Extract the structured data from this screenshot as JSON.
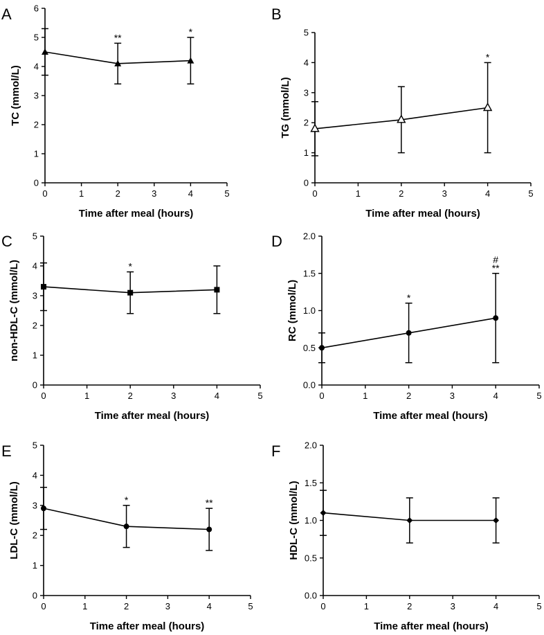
{
  "chart_data": [
    {
      "panel": "A",
      "type": "line",
      "x": [
        0,
        2,
        4
      ],
      "y": [
        4.5,
        4.1,
        4.2
      ],
      "err_low": [
        3.7,
        3.4,
        3.4
      ],
      "err_high": [
        5.3,
        4.8,
        5.0
      ],
      "marker": "triangle-filled",
      "annotations": [
        "",
        "**",
        "*"
      ],
      "xlabel": "Time after meal (hours)",
      "ylabel": "TC  (mmol/L)",
      "xlim": [
        0,
        5
      ],
      "ylim": [
        0,
        6
      ],
      "xticks": [
        "0",
        "1",
        "2",
        "3",
        "4",
        "5"
      ],
      "yticks": [
        "0",
        "1",
        "2",
        "3",
        "4",
        "5",
        "6"
      ]
    },
    {
      "panel": "B",
      "type": "line",
      "x": [
        0,
        2,
        4
      ],
      "y": [
        1.8,
        2.1,
        2.5
      ],
      "err_low": [
        0.9,
        1.0,
        1.0
      ],
      "err_high": [
        2.7,
        3.2,
        4.0
      ],
      "marker": "triangle-open",
      "annotations": [
        "",
        "",
        "*"
      ],
      "xlabel": "Time after meal (hours)",
      "ylabel": "TG  (mmol/L)",
      "xlim": [
        0,
        5
      ],
      "ylim": [
        0,
        5
      ],
      "xticks": [
        "0",
        "1",
        "2",
        "3",
        "4",
        "5"
      ],
      "yticks": [
        "0",
        "1",
        "2",
        "3",
        "4",
        "5"
      ]
    },
    {
      "panel": "C",
      "type": "line",
      "x": [
        0,
        2,
        4
      ],
      "y": [
        3.3,
        3.1,
        3.2
      ],
      "err_low": [
        2.5,
        2.4,
        2.4
      ],
      "err_high": [
        4.1,
        3.8,
        4.0
      ],
      "marker": "square",
      "annotations": [
        "",
        "*",
        ""
      ],
      "xlabel": "Time after meal (hours)",
      "ylabel": "non-HDL-C (mmol/L)",
      "xlim": [
        0,
        5
      ],
      "ylim": [
        0,
        5
      ],
      "xticks": [
        "0",
        "1",
        "2",
        "3",
        "4",
        "5"
      ],
      "yticks": [
        "0",
        "1",
        "2",
        "3",
        "4",
        "5"
      ]
    },
    {
      "panel": "D",
      "type": "line",
      "x": [
        0,
        2,
        4
      ],
      "y": [
        0.5,
        0.7,
        0.9
      ],
      "err_low": [
        0.3,
        0.3,
        0.3
      ],
      "err_high": [
        0.7,
        1.1,
        1.5
      ],
      "marker": "circle",
      "annotations": [
        "",
        "*",
        "**"
      ],
      "annotations_top": [
        "",
        "",
        "#"
      ],
      "xlabel": "Time after meal (hours)",
      "ylabel": "RC  (mmol/L)",
      "xlim": [
        0,
        5
      ],
      "ylim": [
        0,
        2
      ],
      "xticks": [
        "0",
        "1",
        "2",
        "3",
        "4",
        "5"
      ],
      "yticks": [
        "0.0",
        "0.5",
        "1.0",
        "1.5",
        "2.0"
      ]
    },
    {
      "panel": "E",
      "type": "line",
      "x": [
        0,
        2,
        4
      ],
      "y": [
        2.9,
        2.3,
        2.2
      ],
      "err_low": [
        2.2,
        1.6,
        1.5
      ],
      "err_high": [
        3.6,
        3.0,
        2.9
      ],
      "marker": "circle",
      "annotations": [
        "",
        "*",
        "**"
      ],
      "xlabel": "Time after meal (hours)",
      "ylabel": "LDL-C  (mmol/L)",
      "xlim": [
        0,
        5
      ],
      "ylim": [
        0,
        5
      ],
      "xticks": [
        "0",
        "1",
        "2",
        "3",
        "4",
        "5"
      ],
      "yticks": [
        "0",
        "1",
        "2",
        "3",
        "4",
        "5"
      ]
    },
    {
      "panel": "F",
      "type": "line",
      "x": [
        0,
        2,
        4
      ],
      "y": [
        1.1,
        1.0,
        1.0
      ],
      "err_low": [
        0.8,
        0.7,
        0.7
      ],
      "err_high": [
        1.4,
        1.3,
        1.3
      ],
      "marker": "diamond",
      "annotations": [
        "",
        "",
        ""
      ],
      "xlabel": "Time after meal (hours)",
      "ylabel": "HDL-C  (mmol/L)",
      "xlim": [
        0,
        5
      ],
      "ylim": [
        0,
        2
      ],
      "xticks": [
        "0",
        "1",
        "2",
        "3",
        "4",
        "5"
      ],
      "yticks": [
        "0.0",
        "0.5",
        "1.0",
        "1.5",
        "2.0"
      ]
    }
  ]
}
